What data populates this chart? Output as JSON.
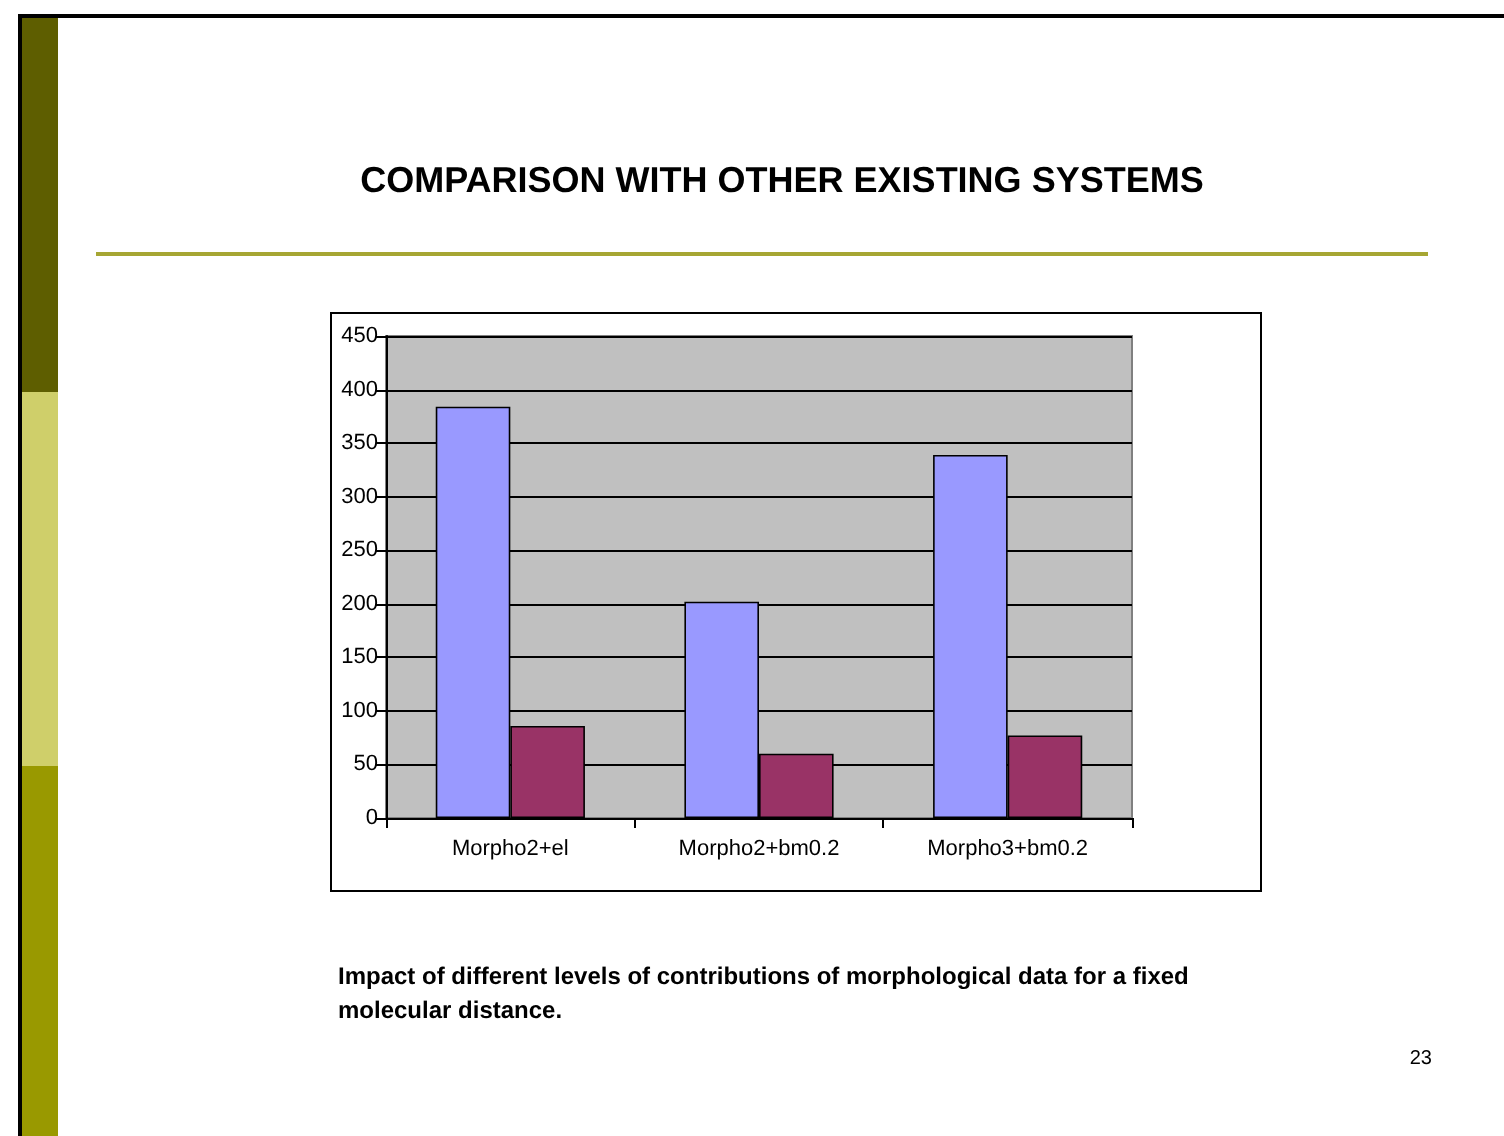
{
  "chart_data": {
    "type": "bar",
    "title": "COMPARISON WITH OTHER EXISTING SYSTEMS",
    "categories": [
      "Morpho2+el",
      "Morpho2+bm0.2",
      "Morpho3+bm0.2"
    ],
    "series": [
      {
        "color": "#9999ff",
        "values": [
          384,
          202,
          339
        ]
      },
      {
        "color": "#993366",
        "values": [
          86,
          60,
          77
        ]
      }
    ],
    "ylim": [
      0,
      450
    ],
    "yticks": [
      0,
      50,
      100,
      150,
      200,
      250,
      300,
      350,
      400,
      450
    ],
    "grid": "y",
    "annotations": [
      "Impact of different levels of contributions of morphological data for a fixed molecular distance.",
      "23"
    ]
  }
}
